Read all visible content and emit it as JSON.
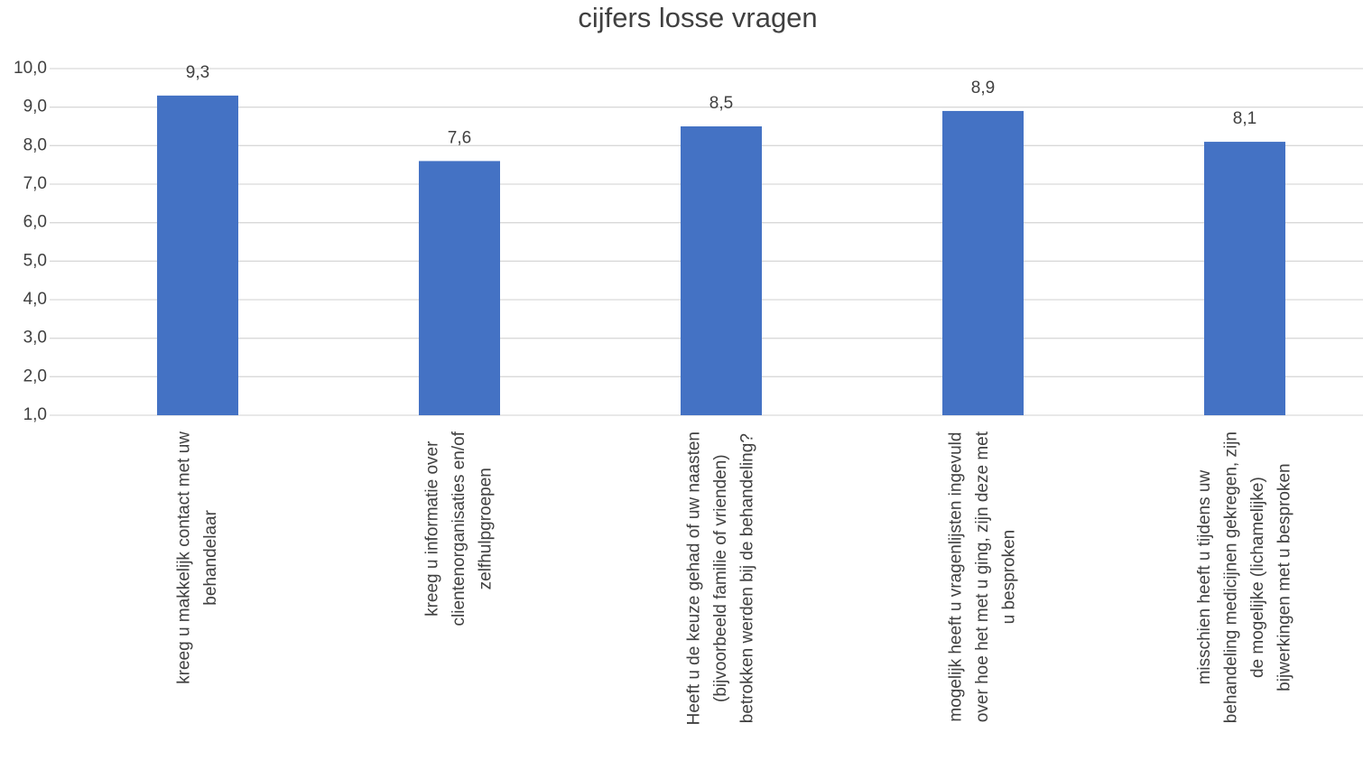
{
  "chart_data": {
    "type": "bar",
    "title": "cijfers losse vragen",
    "categories": [
      [
        "kreeg u makkelijk contact met uw",
        "behandelaar"
      ],
      [
        "kreeg u informatie over",
        "clientenorganisaties en/of",
        "zelfhulpgroepen"
      ],
      [
        "Heeft u de keuze gehad of uw naasten",
        "(bijvoorbeeld familie of vrienden)",
        "betrokken werden bij de behandeling?"
      ],
      [
        "mogelijk heeft u vragenlijsten ingevuld",
        "over hoe het met u ging, zijn deze met",
        "u besproken"
      ],
      [
        "misschien heeft u tijdens uw",
        "behandeling medicijnen gekregen, zijn",
        "de mogelijke (lichamelijke)",
        "bijwerkingen met u besproken"
      ]
    ],
    "values": [
      9.3,
      7.6,
      8.5,
      8.9,
      8.1
    ],
    "value_labels": [
      "9,3",
      "7,6",
      "8,5",
      "8,9",
      "8,1"
    ],
    "color": "#4472c4",
    "ylim": [
      1,
      10
    ],
    "yticks": [
      {
        "value": 1,
        "label": "1,0"
      },
      {
        "value": 2,
        "label": "2,0"
      },
      {
        "value": 3,
        "label": "3,0"
      },
      {
        "value": 4,
        "label": "4,0"
      },
      {
        "value": 5,
        "label": "5,0"
      },
      {
        "value": 6,
        "label": "6,0"
      },
      {
        "value": 7,
        "label": "7,0"
      },
      {
        "value": 8,
        "label": "8,0"
      },
      {
        "value": 9,
        "label": "9,0"
      },
      {
        "value": 10,
        "label": "10,0"
      }
    ],
    "grid": true
  }
}
